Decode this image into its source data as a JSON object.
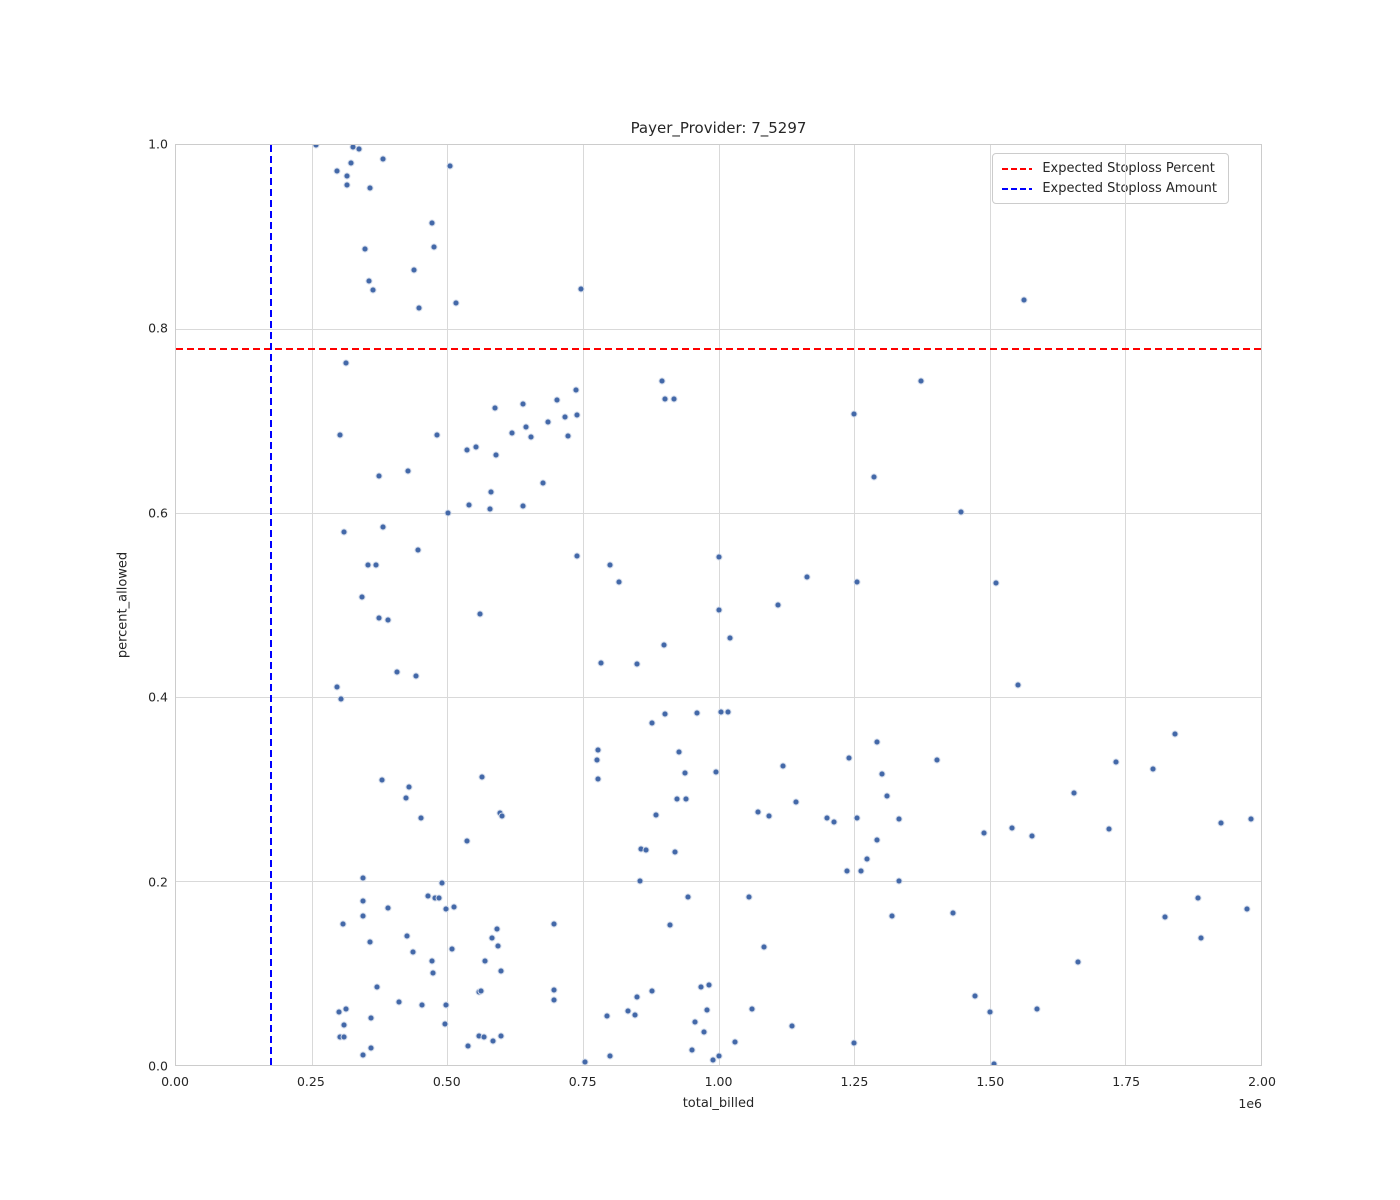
{
  "chart_data": {
    "type": "scatter",
    "title": "Payer_Provider: 7_5297",
    "xlabel": "total_billed",
    "ylabel": "percent_allowed",
    "x_scale_offset": "1e6",
    "xlim": [
      0,
      2000000
    ],
    "ylim": [
      0.0,
      1.0
    ],
    "grid": true,
    "x_ticks": [
      0,
      250000,
      500000,
      750000,
      1000000,
      1250000,
      1500000,
      1750000,
      2000000
    ],
    "x_tick_labels": [
      "0.00",
      "0.25",
      "0.50",
      "0.75",
      "1.00",
      "1.25",
      "1.50",
      "1.75",
      "2.00"
    ],
    "y_ticks": [
      0.0,
      0.2,
      0.4,
      0.6,
      0.8,
      1.0
    ],
    "y_tick_labels": [
      "0.0",
      "0.2",
      "0.4",
      "0.6",
      "0.8",
      "1.0"
    ],
    "legend": {
      "position": "upper right"
    },
    "reference_lines": [
      {
        "orientation": "horizontal",
        "value": 0.778,
        "label": "Expected Stoploss Percent",
        "color": "#ff0000",
        "linestyle": "dashed"
      },
      {
        "orientation": "vertical",
        "value": 175000,
        "label": "Expected Stoploss Amount",
        "color": "#0000ff",
        "linestyle": "dashed"
      }
    ],
    "series": [
      {
        "name": "claims",
        "marker_color": "#4368a8",
        "points": [
          [
            258000,
            1.0
          ],
          [
            327000,
            0.998
          ],
          [
            338000,
            0.996
          ],
          [
            381000,
            0.985
          ],
          [
            322000,
            0.98
          ],
          [
            505000,
            0.977
          ],
          [
            296000,
            0.972
          ],
          [
            315000,
            0.966
          ],
          [
            315000,
            0.956
          ],
          [
            358000,
            0.953
          ],
          [
            472000,
            0.915
          ],
          [
            475000,
            0.889
          ],
          [
            348000,
            0.887
          ],
          [
            439000,
            0.864
          ],
          [
            355000,
            0.852
          ],
          [
            364000,
            0.842
          ],
          [
            516000,
            0.828
          ],
          [
            448000,
            0.823
          ],
          [
            746000,
            0.843
          ],
          [
            313000,
            0.763
          ],
          [
            1563000,
            0.832
          ],
          [
            302000,
            0.685
          ],
          [
            482000,
            0.685
          ],
          [
            427000,
            0.646
          ],
          [
            374000,
            0.64
          ],
          [
            310000,
            0.579
          ],
          [
            382000,
            0.585
          ],
          [
            446000,
            0.56
          ],
          [
            354000,
            0.544
          ],
          [
            368000,
            0.544
          ],
          [
            342000,
            0.509
          ],
          [
            896000,
            0.744
          ],
          [
            901000,
            0.724
          ],
          [
            918000,
            0.724
          ],
          [
            737000,
            0.734
          ],
          [
            703000,
            0.723
          ],
          [
            588000,
            0.714
          ],
          [
            639000,
            0.718
          ],
          [
            740000,
            0.707
          ],
          [
            717000,
            0.704
          ],
          [
            685000,
            0.699
          ],
          [
            646000,
            0.693
          ],
          [
            620000,
            0.687
          ],
          [
            654000,
            0.683
          ],
          [
            723000,
            0.684
          ],
          [
            536000,
            0.668
          ],
          [
            553000,
            0.672
          ],
          [
            589000,
            0.663
          ],
          [
            676000,
            0.633
          ],
          [
            581000,
            0.623
          ],
          [
            541000,
            0.609
          ],
          [
            579000,
            0.604
          ],
          [
            639000,
            0.608
          ],
          [
            502000,
            0.6
          ],
          [
            740000,
            0.553
          ],
          [
            800000,
            0.543
          ],
          [
            817000,
            0.525
          ],
          [
            1373000,
            0.744
          ],
          [
            1250000,
            0.708
          ],
          [
            1287000,
            0.639
          ],
          [
            1447000,
            0.601
          ],
          [
            1163000,
            0.53
          ],
          [
            1255000,
            0.525
          ],
          [
            1110000,
            0.5
          ],
          [
            1000000,
            0.552
          ],
          [
            1512000,
            0.524
          ],
          [
            375000,
            0.486
          ],
          [
            391000,
            0.484
          ],
          [
            407000,
            0.427
          ],
          [
            443000,
            0.423
          ],
          [
            297000,
            0.411
          ],
          [
            304000,
            0.398
          ],
          [
            380000,
            0.31
          ],
          [
            429000,
            0.302
          ],
          [
            424000,
            0.29
          ],
          [
            451000,
            0.268
          ],
          [
            560000,
            0.49
          ],
          [
            899000,
            0.457
          ],
          [
            784000,
            0.437
          ],
          [
            849000,
            0.436
          ],
          [
            1000000,
            0.495
          ],
          [
            902000,
            0.382
          ],
          [
            878000,
            0.372
          ],
          [
            960000,
            0.383
          ],
          [
            1005000,
            0.384
          ],
          [
            1018000,
            0.384
          ],
          [
            928000,
            0.34
          ],
          [
            777000,
            0.342
          ],
          [
            776000,
            0.332
          ],
          [
            778000,
            0.311
          ],
          [
            938000,
            0.317
          ],
          [
            995000,
            0.318
          ],
          [
            924000,
            0.289
          ],
          [
            940000,
            0.289
          ],
          [
            884000,
            0.272
          ],
          [
            564000,
            0.313
          ],
          [
            597000,
            0.274
          ],
          [
            601000,
            0.271
          ],
          [
            1021000,
            0.464
          ],
          [
            1292000,
            0.351
          ],
          [
            1241000,
            0.334
          ],
          [
            1402000,
            0.331
          ],
          [
            1119000,
            0.325
          ],
          [
            1302000,
            0.316
          ],
          [
            1310000,
            0.292
          ],
          [
            1143000,
            0.286
          ],
          [
            1073000,
            0.275
          ],
          [
            1093000,
            0.271
          ],
          [
            1200000,
            0.269
          ],
          [
            1212000,
            0.264
          ],
          [
            1256000,
            0.269
          ],
          [
            1333000,
            0.267
          ],
          [
            1490000,
            0.252
          ],
          [
            1552000,
            0.413
          ],
          [
            1842000,
            0.36
          ],
          [
            1733000,
            0.329
          ],
          [
            1801000,
            0.322
          ],
          [
            1656000,
            0.296
          ],
          [
            1541000,
            0.258
          ],
          [
            1577000,
            0.249
          ],
          [
            1719000,
            0.256
          ],
          [
            1926000,
            0.263
          ],
          [
            1982000,
            0.267
          ],
          [
            345000,
            0.203
          ],
          [
            491000,
            0.198
          ],
          [
            344000,
            0.178
          ],
          [
            391000,
            0.171
          ],
          [
            464000,
            0.184
          ],
          [
            477000,
            0.182
          ],
          [
            485000,
            0.181
          ],
          [
            497000,
            0.17
          ],
          [
            344000,
            0.162
          ],
          [
            307000,
            0.153
          ],
          [
            358000,
            0.134
          ],
          [
            426000,
            0.14
          ],
          [
            437000,
            0.123
          ],
          [
            471000,
            0.113
          ],
          [
            474000,
            0.1
          ],
          [
            371000,
            0.085
          ],
          [
            411000,
            0.069
          ],
          [
            454000,
            0.065
          ],
          [
            497000,
            0.065
          ],
          [
            301000,
            0.058
          ],
          [
            314000,
            0.061
          ],
          [
            359000,
            0.051
          ],
          [
            309000,
            0.044
          ],
          [
            496000,
            0.045
          ],
          [
            302000,
            0.03
          ],
          [
            309000,
            0.03
          ],
          [
            359000,
            0.019
          ],
          [
            344000,
            0.011
          ],
          [
            537000,
            0.243
          ],
          [
            858000,
            0.235
          ],
          [
            867000,
            0.234
          ],
          [
            920000,
            0.232
          ],
          [
            856000,
            0.2
          ],
          [
            943000,
            0.183
          ],
          [
            512000,
            0.172
          ],
          [
            910000,
            0.152
          ],
          [
            696000,
            0.153
          ],
          [
            591000,
            0.148
          ],
          [
            582000,
            0.138
          ],
          [
            594000,
            0.129
          ],
          [
            509000,
            0.126
          ],
          [
            569000,
            0.113
          ],
          [
            599000,
            0.102
          ],
          [
            558000,
            0.079
          ],
          [
            562000,
            0.08
          ],
          [
            696000,
            0.082
          ],
          [
            696000,
            0.071
          ],
          [
            877000,
            0.08
          ],
          [
            850000,
            0.074
          ],
          [
            968000,
            0.085
          ],
          [
            983000,
            0.087
          ],
          [
            979000,
            0.06
          ],
          [
            794000,
            0.053
          ],
          [
            833000,
            0.059
          ],
          [
            847000,
            0.054
          ],
          [
            957000,
            0.047
          ],
          [
            973000,
            0.036
          ],
          [
            558000,
            0.031
          ],
          [
            567000,
            0.03
          ],
          [
            584000,
            0.026
          ],
          [
            599000,
            0.032
          ],
          [
            539000,
            0.021
          ],
          [
            754000,
            0.003
          ],
          [
            800000,
            0.01
          ],
          [
            951000,
            0.016
          ],
          [
            989000,
            0.005
          ],
          [
            1293000,
            0.245
          ],
          [
            1273000,
            0.224
          ],
          [
            1237000,
            0.211
          ],
          [
            1263000,
            0.211
          ],
          [
            1332000,
            0.2
          ],
          [
            1056000,
            0.183
          ],
          [
            1320000,
            0.162
          ],
          [
            1432000,
            0.165
          ],
          [
            1084000,
            0.128
          ],
          [
            1472000,
            0.075
          ],
          [
            1500000,
            0.058
          ],
          [
            1062000,
            0.061
          ],
          [
            1136000,
            0.042
          ],
          [
            1030000,
            0.025
          ],
          [
            1250000,
            0.024
          ],
          [
            1001000,
            0.01
          ],
          [
            1883000,
            0.182
          ],
          [
            1974000,
            0.17
          ],
          [
            1823000,
            0.161
          ],
          [
            1890000,
            0.138
          ],
          [
            1662000,
            0.112
          ],
          [
            1587000,
            0.061
          ],
          [
            1507000,
            0.001
          ]
        ]
      }
    ]
  }
}
